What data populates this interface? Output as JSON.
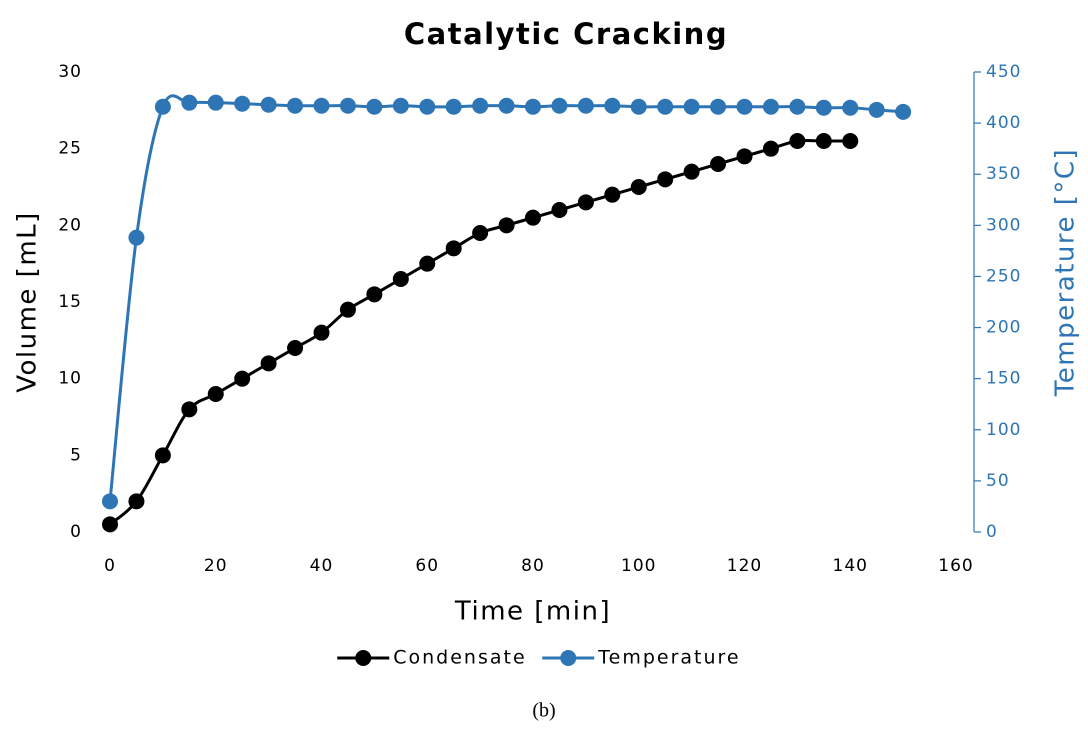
{
  "chart_data": {
    "type": "line",
    "title": "Catalytic Cracking",
    "x_label": "Time [min]",
    "y_label": "Volume [mL]",
    "y2_label": "Temperature [°C]",
    "xlim": [
      0,
      160
    ],
    "xticks": [
      0,
      20,
      40,
      60,
      80,
      100,
      120,
      140,
      160
    ],
    "ylim": [
      0,
      30
    ],
    "yticks": [
      0,
      5,
      10,
      15,
      20,
      25,
      30
    ],
    "y2lim": [
      0,
      450
    ],
    "y2ticks": [
      0,
      50,
      100,
      150,
      200,
      250,
      300,
      350,
      400,
      450
    ],
    "grid": false,
    "legend": "bottom",
    "smooth": true,
    "series": [
      {
        "name": "Condensate",
        "color": "#000000",
        "x": [
          0,
          5,
          10,
          15,
          20,
          25,
          30,
          35,
          40,
          45,
          50,
          55,
          60,
          65,
          70,
          75,
          80,
          85,
          90,
          95,
          100,
          105,
          110,
          115,
          120,
          125,
          130,
          135,
          140
        ],
        "values": [
          0.5,
          2,
          5,
          8,
          9,
          10,
          11,
          12,
          13,
          14.5,
          15.5,
          16.5,
          17.5,
          18.5,
          19.5,
          20,
          20.5,
          21,
          21.5,
          22,
          22.5,
          23,
          23.5,
          24,
          24.5,
          25,
          25.5,
          25.5,
          25.5
        ]
      },
      {
        "name": "Temperature",
        "color": "#2e75b6",
        "axis": "y2",
        "x": [
          0,
          5,
          10,
          15,
          20,
          25,
          30,
          35,
          40,
          45,
          50,
          55,
          60,
          65,
          70,
          75,
          80,
          85,
          90,
          95,
          100,
          105,
          110,
          115,
          120,
          125,
          130,
          135,
          140,
          145,
          150
        ],
        "values": [
          30,
          288,
          416,
          420,
          420,
          419,
          418,
          417,
          417,
          417,
          416,
          417,
          416,
          416,
          417,
          417,
          416,
          417,
          417,
          417,
          416,
          416,
          416,
          416,
          416,
          416,
          416,
          415,
          415,
          413,
          411
        ]
      }
    ],
    "caption": "(b)"
  }
}
